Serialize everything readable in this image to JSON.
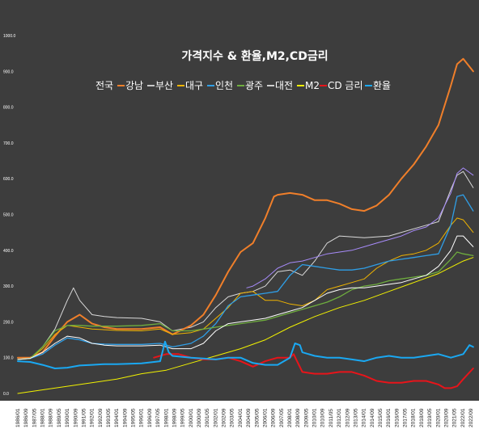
{
  "chart_data": {
    "type": "line",
    "title": "가격지수 & 환율,M2,CD금리",
    "xlabel": "",
    "ylabel": "",
    "ylim": [
      0,
      1000
    ],
    "yticks": [
      "0.0",
      "100.0",
      "200.0",
      "300.0",
      "400.0",
      "500.0",
      "600.0",
      "700.0",
      "800.0",
      "900.0",
      "1000.0"
    ],
    "x_tick_labels": [
      "1986/01",
      "1986/09",
      "1987/05",
      "1988/01",
      "1988/09",
      "1989/05",
      "1990/01",
      "1990/09",
      "1991/05",
      "1992/01",
      "1992/09",
      "1993/05",
      "1994/01",
      "1994/09",
      "1995/05",
      "1996/01",
      "1996/09",
      "1997/05",
      "1998/01",
      "1998/09",
      "1999/05",
      "2000/01",
      "2000/09",
      "2001/05",
      "2002/01",
      "2002/09",
      "2003/05",
      "2004/01",
      "2004/09",
      "2005/05",
      "2006/01",
      "2006/09",
      "2007/05",
      "2008/01",
      "2008/09",
      "2009/05",
      "2010/01",
      "2010/09",
      "2011/05",
      "2012/01",
      "2012/09",
      "2013/05",
      "2014/01",
      "2014/09",
      "2015/05",
      "2016/01",
      "2016/09",
      "2017/05",
      "2018/01",
      "2018/09",
      "2019/05",
      "2020/01",
      "2020/09",
      "2021/05",
      "2022/01",
      "2022/09"
    ],
    "legend": [
      {
        "label": "전국",
        "color": "#ffffff"
      },
      {
        "label": "강남",
        "color": "#f07f2a"
      },
      {
        "label": "부산",
        "color": "#c8c8c8"
      },
      {
        "label": "대구",
        "color": "#f0b400"
      },
      {
        "label": "인천",
        "color": "#2f9ee6"
      },
      {
        "label": "광주",
        "color": "#6fae3e"
      },
      {
        "label": "대전",
        "color": "#cfcfcf"
      },
      {
        "label": "M2",
        "color": "#f2f200"
      },
      {
        "label": "CD 금리",
        "color": "#e8141a"
      },
      {
        "label": "환율",
        "color": "#1aa8f2"
      }
    ],
    "series": [
      {
        "color": "#d9d9d9",
        "width": 1,
        "x": [
          1986,
          1987,
          1988,
          1989,
          1990,
          1990.5,
          1991,
          1992,
          1993,
          1994,
          1996,
          1997.5,
          1998.5,
          2000,
          2001,
          2002,
          2003,
          2004,
          2005,
          2006,
          2007,
          2008,
          2009,
          2010,
          2011,
          2012,
          2014,
          2016,
          2018,
          2019,
          2020,
          2021,
          2021.5,
          2022,
          2022.8
        ],
        "y": [
          95,
          98,
          130,
          180,
          260,
          295,
          260,
          220,
          215,
          212,
          210,
          200,
          175,
          185,
          200,
          240,
          270,
          280,
          285,
          300,
          340,
          345,
          330,
          370,
          420,
          440,
          435,
          440,
          460,
          470,
          480,
          570,
          610,
          620,
          575
        ]
      },
      {
        "color": "#a78bfa",
        "width": 1,
        "x": [
          2004.5,
          2005,
          2006,
          2007,
          2008,
          2009,
          2010,
          2011,
          2012,
          2013,
          2014,
          2015,
          2016,
          2017,
          2018,
          2019,
          2020,
          2021,
          2021.5,
          2022,
          2022.8
        ],
        "y": [
          295,
          300,
          320,
          350,
          365,
          370,
          380,
          390,
          395,
          400,
          410,
          420,
          430,
          440,
          455,
          465,
          490,
          560,
          615,
          630,
          610
        ]
      },
      {
        "color": "#f07f2a",
        "width": 2,
        "x": [
          1986,
          1987,
          1988,
          1989,
          1990,
          1991,
          1992,
          1993,
          1994,
          1995,
          1996,
          1997.5,
          1998.5,
          2000,
          2001,
          2002,
          2003,
          2004,
          2005,
          2006,
          2006.7,
          2007,
          2008,
          2009,
          2010,
          2011,
          2012,
          2013,
          2014,
          2015,
          2016,
          2017,
          2018,
          2019,
          2020,
          2021,
          2021.5,
          2022,
          2022.8
        ],
        "y": [
          100,
          100,
          115,
          160,
          200,
          220,
          195,
          185,
          180,
          180,
          180,
          185,
          165,
          190,
          220,
          275,
          340,
          395,
          420,
          490,
          550,
          555,
          560,
          555,
          540,
          540,
          530,
          515,
          510,
          525,
          555,
          600,
          640,
          690,
          750,
          860,
          920,
          935,
          900
        ]
      },
      {
        "color": "#f0b400",
        "width": 1,
        "x": [
          1986,
          1987,
          1988,
          1989,
          1990,
          1991,
          1992,
          1993,
          1994,
          1996,
          1997.5,
          1998.5,
          2000,
          2001,
          2002,
          2003,
          2004,
          2005,
          2006,
          2007,
          2008,
          2009,
          2010,
          2011,
          2012,
          2013,
          2014,
          2015,
          2016,
          2017,
          2018,
          2019,
          2020,
          2021,
          2021.5,
          2022,
          2022.8
        ],
        "y": [
          95,
          98,
          125,
          165,
          190,
          185,
          180,
          178,
          176,
          175,
          180,
          165,
          170,
          180,
          210,
          240,
          280,
          285,
          260,
          260,
          250,
          245,
          260,
          290,
          300,
          310,
          320,
          350,
          370,
          385,
          390,
          400,
          420,
          470,
          490,
          485,
          450
        ]
      },
      {
        "color": "#2f9ee6",
        "width": 1.3,
        "x": [
          1986,
          1987,
          1988,
          1989,
          1990,
          1991,
          1992,
          1993,
          1994,
          1996,
          1997.5,
          1998.5,
          2000,
          2001,
          2002,
          2003,
          2004,
          2005,
          2006,
          2007,
          2008,
          2009,
          2010,
          2011,
          2012,
          2013,
          2014,
          2015,
          2016,
          2017,
          2018,
          2019,
          2020,
          2021,
          2021.5,
          2022,
          2022.8
        ],
        "y": [
          95,
          98,
          110,
          135,
          155,
          150,
          140,
          138,
          137,
          137,
          140,
          130,
          140,
          160,
          195,
          245,
          270,
          275,
          280,
          285,
          330,
          360,
          355,
          350,
          345,
          345,
          350,
          360,
          370,
          375,
          380,
          385,
          390,
          470,
          550,
          555,
          510
        ]
      },
      {
        "color": "#6fae3e",
        "width": 1.3,
        "x": [
          1986,
          1987,
          1988,
          1989,
          1990,
          1991,
          1992,
          1993,
          1994,
          1996,
          1997.5,
          1998.5,
          2000,
          2001,
          2002,
          2003,
          2004,
          2005,
          2006,
          2007,
          2008,
          2009,
          2010,
          2011,
          2012,
          2013,
          2014,
          2015,
          2016,
          2017,
          2018,
          2019,
          2020,
          2021,
          2021.5,
          2022,
          2022.8
        ],
        "y": [
          95,
          98,
          130,
          175,
          190,
          190,
          188,
          188,
          188,
          190,
          195,
          175,
          175,
          180,
          185,
          190,
          195,
          200,
          205,
          215,
          225,
          235,
          245,
          255,
          270,
          290,
          300,
          305,
          315,
          320,
          325,
          330,
          340,
          375,
          395,
          390,
          385
        ]
      },
      {
        "color": "#ffffff",
        "width": 1,
        "x": [
          1986,
          1987,
          1988,
          1989,
          1990,
          1991,
          1992,
          1993,
          1994,
          1996,
          1997.5,
          1998.5,
          2000,
          2001,
          2002,
          2003,
          2004,
          2005,
          2006,
          2007,
          2008,
          2009,
          2010,
          2011,
          2012,
          2013,
          2014,
          2015,
          2016,
          2017,
          2018,
          2019,
          2020,
          2021,
          2021.5,
          2022,
          2022.8
        ],
        "y": [
          95,
          98,
          115,
          140,
          160,
          155,
          140,
          135,
          133,
          133,
          135,
          125,
          125,
          140,
          175,
          195,
          200,
          205,
          210,
          220,
          230,
          240,
          260,
          280,
          290,
          295,
          295,
          300,
          305,
          310,
          320,
          330,
          355,
          400,
          440,
          440,
          410
        ]
      },
      {
        "color": "#f2f200",
        "width": 1,
        "x": [
          1986,
          1990,
          1994,
          1996,
          1998,
          2000,
          2002,
          2004,
          2006,
          2008,
          2010,
          2012,
          2014,
          2016,
          2018,
          2020,
          2022,
          2022.8
        ],
        "y": [
          0,
          20,
          40,
          55,
          65,
          85,
          105,
          125,
          150,
          185,
          215,
          240,
          260,
          285,
          310,
          335,
          370,
          380
        ]
      },
      {
        "color": "#e8141a",
        "width": 2,
        "x": [
          1997,
          1998,
          1999,
          2000,
          2001,
          2002,
          2003,
          2004,
          2005,
          2006,
          2007,
          2008,
          2008.3,
          2008.5,
          2009,
          2010,
          2011,
          2012,
          2013,
          2014,
          2015,
          2016,
          2017,
          2018,
          2019,
          2020,
          2020.5,
          2021,
          2021.5,
          2022,
          2022.8
        ],
        "y": [
          100,
          110,
          110,
          100,
          95,
          95,
          100,
          90,
          75,
          90,
          100,
          100,
          110,
          95,
          60,
          55,
          55,
          60,
          60,
          50,
          35,
          30,
          30,
          35,
          35,
          25,
          15,
          15,
          20,
          40,
          70
        ]
      },
      {
        "color": "#1aa8f2",
        "width": 2,
        "x": [
          1986,
          1987,
          1988,
          1989,
          1990,
          1991,
          1992,
          1993,
          1994,
          1996,
          1997.5,
          1997.9,
          1998.2,
          1998.5,
          2000,
          2002,
          2003,
          2004,
          2005,
          2006,
          2007,
          2008,
          2008.4,
          2008.8,
          2009,
          2010,
          2011,
          2012,
          2013,
          2014,
          2015,
          2016,
          2017,
          2018,
          2019,
          2020,
          2021,
          2022,
          2022.5,
          2022.8
        ],
        "y": [
          90,
          88,
          80,
          70,
          72,
          78,
          80,
          82,
          82,
          84,
          90,
          145,
          115,
          105,
          100,
          95,
          100,
          100,
          85,
          80,
          80,
          100,
          140,
          135,
          115,
          105,
          100,
          100,
          95,
          90,
          100,
          105,
          100,
          100,
          105,
          110,
          100,
          110,
          135,
          130
        ]
      }
    ]
  }
}
